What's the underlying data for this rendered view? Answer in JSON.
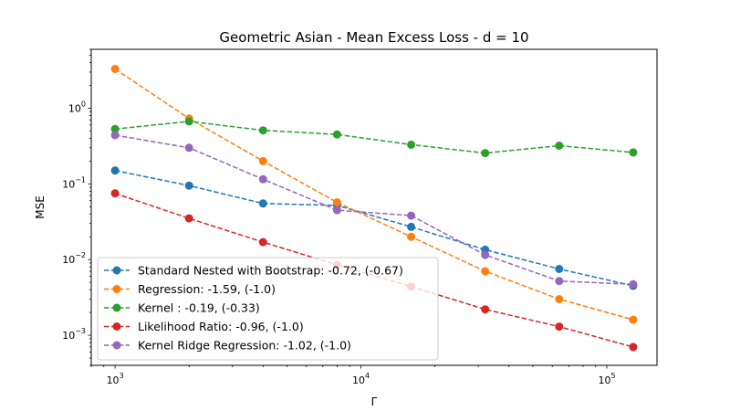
{
  "chart_data": {
    "type": "line",
    "title": "Geometric Asian - Mean Excess Loss - d = 10",
    "xlabel": "Γ",
    "ylabel": "MSE",
    "xscale": "log",
    "yscale": "log",
    "xlim": [
      800,
      160000
    ],
    "ylim": [
      0.0004,
      6
    ],
    "xticks": [
      {
        "value": 1000,
        "base": "10",
        "exp": "3"
      },
      {
        "value": 10000,
        "base": "10",
        "exp": "4"
      },
      {
        "value": 100000,
        "base": "10",
        "exp": "5"
      }
    ],
    "yticks": [
      {
        "value": 0.001,
        "base": "10",
        "exp": "−3"
      },
      {
        "value": 0.01,
        "base": "10",
        "exp": "−2"
      },
      {
        "value": 0.1,
        "base": "10",
        "exp": "−1"
      },
      {
        "value": 1,
        "base": "10",
        "exp": "0"
      }
    ],
    "x": [
      1000,
      2000,
      4000,
      8000,
      16000,
      32000,
      64000,
      128000
    ],
    "legend_position": "lower-left",
    "grid": false,
    "series": [
      {
        "name": "Standard Nested with Bootstrap: -0.72, (-0.67)",
        "color": "#1f77b4",
        "values": [
          0.15,
          0.095,
          0.055,
          0.052,
          0.027,
          0.0135,
          0.0075,
          0.0045
        ]
      },
      {
        "name": "Regression: -1.59, (-1.0)",
        "color": "#ff7f0e",
        "values": [
          3.3,
          0.73,
          0.2,
          0.057,
          0.02,
          0.007,
          0.003,
          0.0016
        ]
      },
      {
        "name": "Kernel : -0.19, (-0.33)",
        "color": "#2ca02c",
        "values": [
          0.53,
          0.67,
          0.51,
          0.45,
          0.33,
          0.255,
          0.32,
          0.26
        ]
      },
      {
        "name": "Likelihood Ratio: -0.96, (-1.0)",
        "color": "#d62728",
        "values": [
          0.075,
          0.035,
          0.017,
          0.0085,
          0.0044,
          0.0022,
          0.0013,
          0.0007
        ]
      },
      {
        "name": "Kernel Ridge Regression: -1.02, (-1.0)",
        "color": "#9467bd",
        "values": [
          0.44,
          0.3,
          0.115,
          0.045,
          0.038,
          0.0115,
          0.0052,
          0.0047
        ]
      }
    ]
  }
}
